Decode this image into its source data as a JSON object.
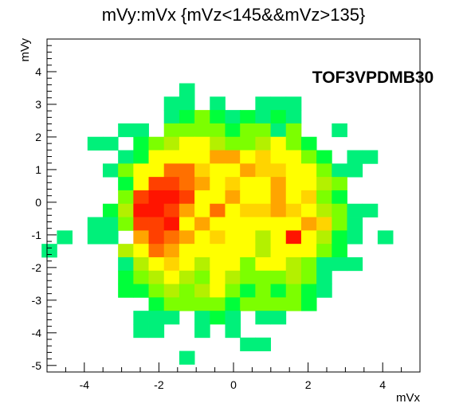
{
  "chart_data": {
    "type": "heatmap",
    "title": "mVy:mVx {mVz<145&&mVz>135}",
    "xlabel": "mVx",
    "ylabel": "mVy",
    "annotation": "TOF3VPDMB30",
    "xlim": [
      -5,
      5
    ],
    "ylim": [
      -5.2,
      5
    ],
    "xticks": [
      -4,
      -2,
      0,
      2,
      4
    ],
    "yticks": [
      -5,
      -4,
      -3,
      -2,
      -1,
      0,
      1,
      2,
      3,
      4
    ],
    "bin_width_x": 0.41,
    "bin_width_y": 0.41,
    "colors": {
      "1": "#00f07a",
      "2": "#00ff3a",
      "3": "#7cff00",
      "4": "#b4f000",
      "5": "#ffff00",
      "6": "#ffd400",
      "7": "#ffa500",
      "8": "#ff7000",
      "9": "#ff4000",
      "10": "#ff1400"
    },
    "cells": [
      {
        "x": -1.25,
        "y": 3.44,
        "v": 1
      },
      {
        "x": -1.66,
        "y": 3.03,
        "v": 1
      },
      {
        "x": -1.25,
        "y": 3.03,
        "v": 1
      },
      {
        "x": -0.43,
        "y": 3.03,
        "v": 1
      },
      {
        "x": 0.79,
        "y": 3.03,
        "v": 1
      },
      {
        "x": 1.2,
        "y": 3.03,
        "v": 1
      },
      {
        "x": 1.61,
        "y": 3.03,
        "v": 1
      },
      {
        "x": -1.66,
        "y": 2.62,
        "v": 1
      },
      {
        "x": -1.25,
        "y": 2.62,
        "v": 2
      },
      {
        "x": -0.84,
        "y": 2.62,
        "v": 3
      },
      {
        "x": -0.43,
        "y": 2.62,
        "v": 2
      },
      {
        "x": -0.02,
        "y": 2.62,
        "v": 1
      },
      {
        "x": 0.38,
        "y": 2.62,
        "v": 2
      },
      {
        "x": 0.79,
        "y": 2.62,
        "v": 1
      },
      {
        "x": 1.2,
        "y": 2.62,
        "v": 2
      },
      {
        "x": 1.61,
        "y": 2.62,
        "v": 1
      },
      {
        "x": -2.89,
        "y": 2.21,
        "v": 1
      },
      {
        "x": -2.48,
        "y": 2.21,
        "v": 1
      },
      {
        "x": -1.66,
        "y": 2.21,
        "v": 3
      },
      {
        "x": -1.25,
        "y": 2.21,
        "v": 3
      },
      {
        "x": -0.84,
        "y": 2.21,
        "v": 3
      },
      {
        "x": -0.43,
        "y": 2.21,
        "v": 3
      },
      {
        "x": -0.02,
        "y": 2.21,
        "v": 2
      },
      {
        "x": 0.38,
        "y": 2.21,
        "v": 3
      },
      {
        "x": 0.79,
        "y": 2.21,
        "v": 3
      },
      {
        "x": 1.2,
        "y": 2.21,
        "v": 1
      },
      {
        "x": 1.61,
        "y": 2.21,
        "v": 3
      },
      {
        "x": 2.84,
        "y": 2.21,
        "v": 1
      },
      {
        "x": -3.71,
        "y": 1.8,
        "v": 1
      },
      {
        "x": -3.3,
        "y": 1.8,
        "v": 1
      },
      {
        "x": -2.48,
        "y": 1.8,
        "v": 2
      },
      {
        "x": -2.07,
        "y": 1.8,
        "v": 3
      },
      {
        "x": -1.66,
        "y": 1.8,
        "v": 4
      },
      {
        "x": -1.25,
        "y": 1.8,
        "v": 5
      },
      {
        "x": -0.84,
        "y": 1.8,
        "v": 5
      },
      {
        "x": -0.43,
        "y": 1.8,
        "v": 4
      },
      {
        "x": -0.02,
        "y": 1.8,
        "v": 3
      },
      {
        "x": 0.38,
        "y": 1.8,
        "v": 3
      },
      {
        "x": 0.79,
        "y": 1.8,
        "v": 4
      },
      {
        "x": 1.2,
        "y": 1.8,
        "v": 5
      },
      {
        "x": 1.61,
        "y": 1.8,
        "v": 3
      },
      {
        "x": 2.02,
        "y": 1.8,
        "v": 2
      },
      {
        "x": -2.89,
        "y": 1.39,
        "v": 1
      },
      {
        "x": -2.48,
        "y": 1.39,
        "v": 2
      },
      {
        "x": -2.07,
        "y": 1.39,
        "v": 5
      },
      {
        "x": -1.66,
        "y": 1.39,
        "v": 5
      },
      {
        "x": -1.25,
        "y": 1.39,
        "v": 5
      },
      {
        "x": -0.84,
        "y": 1.39,
        "v": 5
      },
      {
        "x": -0.43,
        "y": 1.39,
        "v": 7
      },
      {
        "x": -0.02,
        "y": 1.39,
        "v": 7
      },
      {
        "x": 0.38,
        "y": 1.39,
        "v": 5
      },
      {
        "x": 0.79,
        "y": 1.39,
        "v": 6
      },
      {
        "x": 1.2,
        "y": 1.39,
        "v": 5
      },
      {
        "x": 1.61,
        "y": 1.39,
        "v": 5
      },
      {
        "x": 2.02,
        "y": 1.39,
        "v": 3
      },
      {
        "x": 2.43,
        "y": 1.39,
        "v": 2
      },
      {
        "x": 3.25,
        "y": 1.39,
        "v": 1
      },
      {
        "x": 3.66,
        "y": 1.39,
        "v": 1
      },
      {
        "x": -3.3,
        "y": 0.98,
        "v": 1
      },
      {
        "x": -2.89,
        "y": 0.98,
        "v": 3
      },
      {
        "x": -2.48,
        "y": 0.98,
        "v": 5
      },
      {
        "x": -2.07,
        "y": 0.98,
        "v": 5
      },
      {
        "x": -1.66,
        "y": 0.98,
        "v": 8
      },
      {
        "x": -1.25,
        "y": 0.98,
        "v": 8
      },
      {
        "x": -0.84,
        "y": 0.98,
        "v": 6
      },
      {
        "x": -0.43,
        "y": 0.98,
        "v": 5
      },
      {
        "x": -0.02,
        "y": 0.98,
        "v": 5
      },
      {
        "x": 0.38,
        "y": 0.98,
        "v": 7
      },
      {
        "x": 0.79,
        "y": 0.98,
        "v": 6
      },
      {
        "x": 1.2,
        "y": 0.98,
        "v": 6
      },
      {
        "x": 1.61,
        "y": 0.98,
        "v": 5
      },
      {
        "x": 2.02,
        "y": 0.98,
        "v": 5
      },
      {
        "x": 2.43,
        "y": 0.98,
        "v": 3
      },
      {
        "x": 2.84,
        "y": 0.98,
        "v": 1
      },
      {
        "x": 3.25,
        "y": 0.98,
        "v": 1
      },
      {
        "x": -2.89,
        "y": 0.57,
        "v": 2
      },
      {
        "x": -2.48,
        "y": 0.57,
        "v": 5
      },
      {
        "x": -2.07,
        "y": 0.57,
        "v": 9
      },
      {
        "x": -1.66,
        "y": 0.57,
        "v": 9
      },
      {
        "x": -1.25,
        "y": 0.57,
        "v": 8
      },
      {
        "x": -0.84,
        "y": 0.57,
        "v": 7
      },
      {
        "x": -0.43,
        "y": 0.57,
        "v": 5
      },
      {
        "x": -0.02,
        "y": 0.57,
        "v": 6
      },
      {
        "x": 0.38,
        "y": 0.57,
        "v": 5
      },
      {
        "x": 0.79,
        "y": 0.57,
        "v": 5
      },
      {
        "x": 1.2,
        "y": 0.57,
        "v": 7
      },
      {
        "x": 1.61,
        "y": 0.57,
        "v": 5
      },
      {
        "x": 2.02,
        "y": 0.57,
        "v": 5
      },
      {
        "x": 2.43,
        "y": 0.57,
        "v": 4
      },
      {
        "x": 2.84,
        "y": 0.57,
        "v": 3
      },
      {
        "x": -2.89,
        "y": 0.16,
        "v": 3
      },
      {
        "x": -2.48,
        "y": 0.16,
        "v": 9
      },
      {
        "x": -2.07,
        "y": 0.16,
        "v": 10
      },
      {
        "x": -1.66,
        "y": 0.16,
        "v": 10
      },
      {
        "x": -1.25,
        "y": 0.16,
        "v": 9
      },
      {
        "x": -0.84,
        "y": 0.16,
        "v": 5
      },
      {
        "x": -0.43,
        "y": 0.16,
        "v": 5
      },
      {
        "x": -0.02,
        "y": 0.16,
        "v": 7
      },
      {
        "x": 0.38,
        "y": 0.16,
        "v": 5
      },
      {
        "x": 0.79,
        "y": 0.16,
        "v": 5
      },
      {
        "x": 1.2,
        "y": 0.16,
        "v": 7
      },
      {
        "x": 1.61,
        "y": 0.16,
        "v": 5
      },
      {
        "x": 2.02,
        "y": 0.16,
        "v": 6
      },
      {
        "x": 2.43,
        "y": 0.16,
        "v": 3
      },
      {
        "x": 2.84,
        "y": 0.16,
        "v": 2
      },
      {
        "x": -3.3,
        "y": -0.25,
        "v": 2
      },
      {
        "x": -2.89,
        "y": -0.25,
        "v": 4
      },
      {
        "x": -2.48,
        "y": -0.25,
        "v": 10
      },
      {
        "x": -2.07,
        "y": -0.25,
        "v": 10
      },
      {
        "x": -1.66,
        "y": -0.25,
        "v": 9
      },
      {
        "x": -1.25,
        "y": -0.25,
        "v": 7
      },
      {
        "x": -0.84,
        "y": -0.25,
        "v": 5
      },
      {
        "x": -0.43,
        "y": -0.25,
        "v": 8
      },
      {
        "x": -0.02,
        "y": -0.25,
        "v": 5
      },
      {
        "x": 0.38,
        "y": -0.25,
        "v": 6
      },
      {
        "x": 0.79,
        "y": -0.25,
        "v": 6
      },
      {
        "x": 1.2,
        "y": -0.25,
        "v": 7
      },
      {
        "x": 1.61,
        "y": -0.25,
        "v": 6
      },
      {
        "x": 2.02,
        "y": -0.25,
        "v": 5
      },
      {
        "x": 2.43,
        "y": -0.25,
        "v": 4
      },
      {
        "x": 2.84,
        "y": -0.25,
        "v": 3
      },
      {
        "x": 3.25,
        "y": -0.25,
        "v": 1
      },
      {
        "x": 3.66,
        "y": -0.25,
        "v": 1
      },
      {
        "x": -3.71,
        "y": -0.66,
        "v": 1
      },
      {
        "x": -3.3,
        "y": -0.66,
        "v": 1
      },
      {
        "x": -2.89,
        "y": -0.66,
        "v": 3
      },
      {
        "x": -2.48,
        "y": -0.66,
        "v": 9
      },
      {
        "x": -2.07,
        "y": -0.66,
        "v": 9
      },
      {
        "x": -1.66,
        "y": -0.66,
        "v": 10
      },
      {
        "x": -1.25,
        "y": -0.66,
        "v": 5
      },
      {
        "x": -0.84,
        "y": -0.66,
        "v": 7
      },
      {
        "x": -0.43,
        "y": -0.66,
        "v": 5
      },
      {
        "x": -0.02,
        "y": -0.66,
        "v": 5
      },
      {
        "x": 0.38,
        "y": -0.66,
        "v": 5
      },
      {
        "x": 0.79,
        "y": -0.66,
        "v": 5
      },
      {
        "x": 1.2,
        "y": -0.66,
        "v": 5
      },
      {
        "x": 1.61,
        "y": -0.66,
        "v": 5
      },
      {
        "x": 2.02,
        "y": -0.66,
        "v": 7
      },
      {
        "x": 2.43,
        "y": -0.66,
        "v": 6
      },
      {
        "x": 2.84,
        "y": -0.66,
        "v": 3
      },
      {
        "x": 3.25,
        "y": -0.66,
        "v": 1
      },
      {
        "x": -4.53,
        "y": -1.07,
        "v": 1
      },
      {
        "x": -3.71,
        "y": -1.07,
        "v": 1
      },
      {
        "x": -3.3,
        "y": -1.07,
        "v": 1
      },
      {
        "x": -2.48,
        "y": -1.07,
        "v": 7
      },
      {
        "x": -2.07,
        "y": -1.07,
        "v": 9
      },
      {
        "x": -1.66,
        "y": -1.07,
        "v": 8
      },
      {
        "x": -1.25,
        "y": -1.07,
        "v": 7
      },
      {
        "x": -0.84,
        "y": -1.07,
        "v": 5
      },
      {
        "x": -0.43,
        "y": -1.07,
        "v": 6
      },
      {
        "x": -0.02,
        "y": -1.07,
        "v": 5
      },
      {
        "x": 0.38,
        "y": -1.07,
        "v": 5
      },
      {
        "x": 0.79,
        "y": -1.07,
        "v": 4
      },
      {
        "x": 1.2,
        "y": -1.07,
        "v": 5
      },
      {
        "x": 1.61,
        "y": -1.07,
        "v": 10
      },
      {
        "x": 2.02,
        "y": -1.07,
        "v": 5
      },
      {
        "x": 2.43,
        "y": -1.07,
        "v": 4
      },
      {
        "x": 2.84,
        "y": -1.07,
        "v": 2
      },
      {
        "x": 3.25,
        "y": -1.07,
        "v": 1
      },
      {
        "x": 4.07,
        "y": -1.07,
        "v": 1
      },
      {
        "x": -4.94,
        "y": -1.48,
        "v": 1
      },
      {
        "x": -2.89,
        "y": -1.48,
        "v": 4
      },
      {
        "x": -2.48,
        "y": -1.48,
        "v": 5
      },
      {
        "x": -2.07,
        "y": -1.48,
        "v": 8
      },
      {
        "x": -1.66,
        "y": -1.48,
        "v": 7
      },
      {
        "x": -1.25,
        "y": -1.48,
        "v": 5
      },
      {
        "x": -0.84,
        "y": -1.48,
        "v": 5
      },
      {
        "x": -0.43,
        "y": -1.48,
        "v": 5
      },
      {
        "x": -0.02,
        "y": -1.48,
        "v": 5
      },
      {
        "x": 0.38,
        "y": -1.48,
        "v": 5
      },
      {
        "x": 0.79,
        "y": -1.48,
        "v": 4
      },
      {
        "x": 1.2,
        "y": -1.48,
        "v": 5
      },
      {
        "x": 1.61,
        "y": -1.48,
        "v": 5
      },
      {
        "x": 2.02,
        "y": -1.48,
        "v": 5
      },
      {
        "x": 2.43,
        "y": -1.48,
        "v": 3
      },
      {
        "x": 2.84,
        "y": -1.48,
        "v": 2
      },
      {
        "x": -2.89,
        "y": -1.89,
        "v": 1
      },
      {
        "x": -2.48,
        "y": -1.89,
        "v": 4
      },
      {
        "x": -2.07,
        "y": -1.89,
        "v": 5
      },
      {
        "x": -1.66,
        "y": -1.89,
        "v": 6
      },
      {
        "x": -1.25,
        "y": -1.89,
        "v": 5
      },
      {
        "x": -0.84,
        "y": -1.89,
        "v": 4
      },
      {
        "x": -0.43,
        "y": -1.89,
        "v": 5
      },
      {
        "x": -0.02,
        "y": -1.89,
        "v": 5
      },
      {
        "x": 0.38,
        "y": -1.89,
        "v": 3
      },
      {
        "x": 0.79,
        "y": -1.89,
        "v": 5
      },
      {
        "x": 1.2,
        "y": -1.89,
        "v": 5
      },
      {
        "x": 1.61,
        "y": -1.89,
        "v": 4
      },
      {
        "x": 2.02,
        "y": -1.89,
        "v": 3
      },
      {
        "x": 2.43,
        "y": -1.89,
        "v": 1
      },
      {
        "x": 2.84,
        "y": -1.89,
        "v": 1
      },
      {
        "x": 3.25,
        "y": -1.89,
        "v": 1
      },
      {
        "x": -2.89,
        "y": -2.3,
        "v": 2
      },
      {
        "x": -2.48,
        "y": -2.3,
        "v": 3
      },
      {
        "x": -2.07,
        "y": -2.3,
        "v": 4
      },
      {
        "x": -1.66,
        "y": -2.3,
        "v": 5
      },
      {
        "x": -1.25,
        "y": -2.3,
        "v": 4
      },
      {
        "x": -0.84,
        "y": -2.3,
        "v": 3
      },
      {
        "x": -0.43,
        "y": -2.3,
        "v": 5
      },
      {
        "x": -0.02,
        "y": -2.3,
        "v": 4
      },
      {
        "x": 0.38,
        "y": -2.3,
        "v": 3
      },
      {
        "x": 0.79,
        "y": -2.3,
        "v": 3
      },
      {
        "x": 1.2,
        "y": -2.3,
        "v": 3
      },
      {
        "x": 1.61,
        "y": -2.3,
        "v": 4
      },
      {
        "x": 2.02,
        "y": -2.3,
        "v": 3
      },
      {
        "x": 2.43,
        "y": -2.3,
        "v": 1
      },
      {
        "x": -2.89,
        "y": -2.71,
        "v": 2
      },
      {
        "x": -2.48,
        "y": -2.71,
        "v": 2
      },
      {
        "x": -2.07,
        "y": -2.71,
        "v": 3
      },
      {
        "x": -1.66,
        "y": -2.71,
        "v": 4
      },
      {
        "x": -1.25,
        "y": -2.71,
        "v": 3
      },
      {
        "x": -0.84,
        "y": -2.71,
        "v": 4
      },
      {
        "x": -0.43,
        "y": -2.71,
        "v": 5
      },
      {
        "x": -0.02,
        "y": -2.71,
        "v": 3
      },
      {
        "x": 0.38,
        "y": -2.71,
        "v": 2
      },
      {
        "x": 0.79,
        "y": -2.71,
        "v": 3
      },
      {
        "x": 1.2,
        "y": -2.71,
        "v": 2
      },
      {
        "x": 1.61,
        "y": -2.71,
        "v": 3
      },
      {
        "x": 2.02,
        "y": -2.71,
        "v": 2
      },
      {
        "x": 2.43,
        "y": -2.71,
        "v": 1
      },
      {
        "x": -2.07,
        "y": -3.12,
        "v": 2
      },
      {
        "x": -1.66,
        "y": -3.12,
        "v": 3
      },
      {
        "x": -1.25,
        "y": -3.12,
        "v": 3
      },
      {
        "x": -0.84,
        "y": -3.12,
        "v": 3
      },
      {
        "x": -0.43,
        "y": -3.12,
        "v": 3
      },
      {
        "x": -0.02,
        "y": -3.12,
        "v": 2
      },
      {
        "x": 0.38,
        "y": -3.12,
        "v": 3
      },
      {
        "x": 0.79,
        "y": -3.12,
        "v": 3
      },
      {
        "x": 1.2,
        "y": -3.12,
        "v": 3
      },
      {
        "x": 1.61,
        "y": -3.12,
        "v": 3
      },
      {
        "x": 2.02,
        "y": -3.12,
        "v": 2
      },
      {
        "x": -2.48,
        "y": -3.53,
        "v": 1
      },
      {
        "x": -2.07,
        "y": -3.53,
        "v": 1
      },
      {
        "x": -1.66,
        "y": -3.53,
        "v": 1
      },
      {
        "x": -0.84,
        "y": -3.53,
        "v": 1
      },
      {
        "x": -0.43,
        "y": -3.53,
        "v": 2
      },
      {
        "x": -0.02,
        "y": -3.53,
        "v": 1
      },
      {
        "x": 0.79,
        "y": -3.53,
        "v": 1
      },
      {
        "x": 1.2,
        "y": -3.53,
        "v": 1
      },
      {
        "x": -2.48,
        "y": -3.94,
        "v": 1
      },
      {
        "x": -2.07,
        "y": -3.94,
        "v": 1
      },
      {
        "x": -0.84,
        "y": -3.94,
        "v": 1
      },
      {
        "x": -0.02,
        "y": -3.94,
        "v": 1
      },
      {
        "x": 0.38,
        "y": -4.35,
        "v": 1
      },
      {
        "x": 0.79,
        "y": -4.35,
        "v": 1
      },
      {
        "x": -1.25,
        "y": -4.76,
        "v": 1
      }
    ]
  }
}
